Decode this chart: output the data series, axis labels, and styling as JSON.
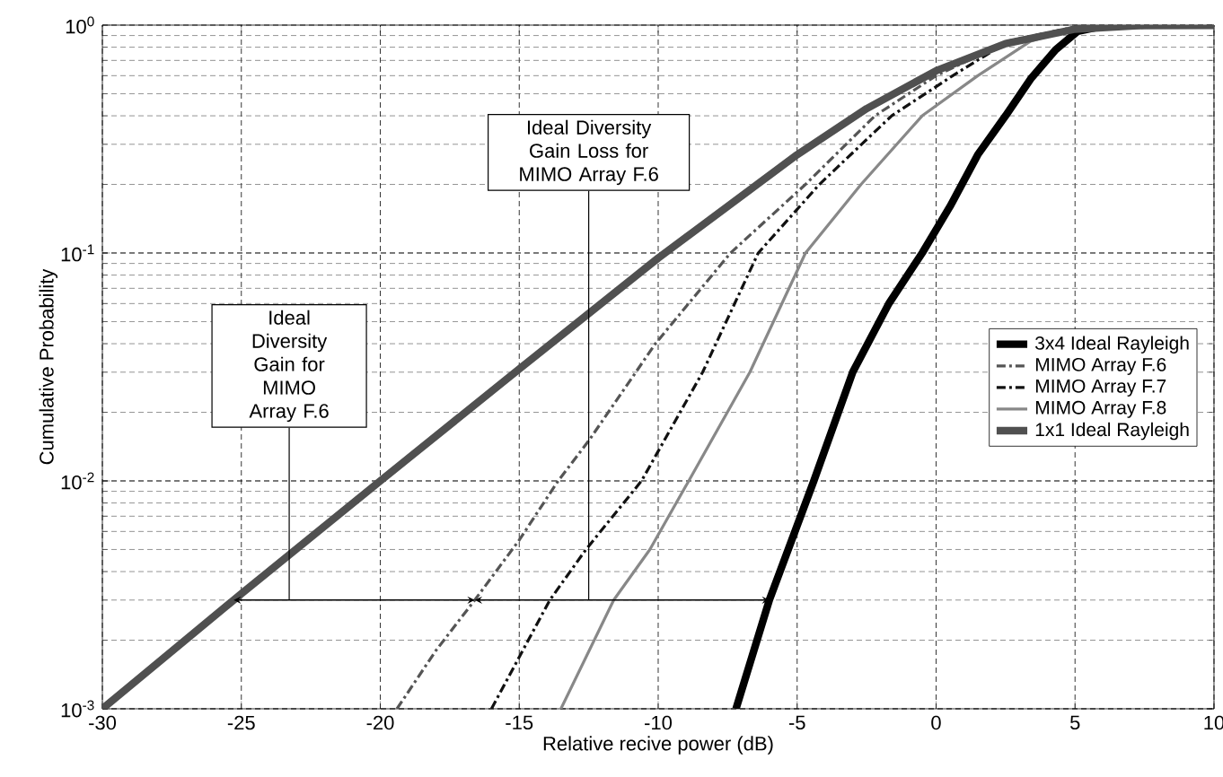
{
  "chart_data": {
    "type": "line",
    "xlabel": "Relative recive power (dB)",
    "ylabel": "Cumulative Probability",
    "xlim": [
      -30,
      10
    ],
    "xticks": [
      -30,
      -25,
      -20,
      -15,
      -10,
      -5,
      0,
      5,
      10
    ],
    "ylim": [
      0.001,
      1
    ],
    "yticks": [
      {
        "value": 0.001,
        "label": "10$^{-3}$"
      },
      {
        "value": 0.01,
        "label": "10$^{-2}$"
      },
      {
        "value": 0.1,
        "label": "10$^{-1}$"
      },
      {
        "value": 1,
        "label": "10$^{0}$"
      }
    ],
    "log": "y",
    "grid": true,
    "legend": "right",
    "marker": "none",
    "series": [
      {
        "name": "3x4 Ideal Rayleigh",
        "color": "#000000",
        "line_style": "solid",
        "x": [
          -7.2,
          -6,
          -4.4,
          -3,
          -1.7,
          -0.5,
          0.5,
          1.5,
          2.5,
          3.4,
          4.3,
          5.1,
          6,
          7,
          10
        ],
        "values": [
          0.001,
          0.003,
          0.01,
          0.03,
          0.06,
          0.1,
          0.16,
          0.27,
          0.4,
          0.58,
          0.78,
          0.94,
          0.99,
          1,
          1
        ]
      },
      {
        "name": "MIMO Array F.6",
        "color": "#555555",
        "line_style": "dashdot",
        "x": [
          -19.4,
          -18,
          -16.6,
          -15,
          -13.6,
          -12.5,
          -10.1,
          -7.4,
          -4.7,
          -2.2,
          0,
          2.6,
          5,
          7,
          10
        ],
        "values": [
          0.001,
          0.0018,
          0.003,
          0.0055,
          0.01,
          0.015,
          0.04,
          0.1,
          0.2,
          0.4,
          0.6,
          0.85,
          0.98,
          1,
          1
        ]
      },
      {
        "name": "MIMO Array F.7",
        "color": "#111111",
        "line_style": "dashdot",
        "x": [
          -16,
          -13.9,
          -12.6,
          -10.6,
          -8.4,
          -6.4,
          -4.2,
          -1.6,
          0.6,
          2.6,
          5,
          7,
          10
        ],
        "values": [
          0.001,
          0.003,
          0.005,
          0.01,
          0.03,
          0.1,
          0.2,
          0.4,
          0.6,
          0.85,
          0.98,
          1,
          1
        ]
      },
      {
        "name": "MIMO Array F.8",
        "color": "#888888",
        "line_style": "solid",
        "x": [
          -13.5,
          -11.6,
          -10.3,
          -8.9,
          -6.7,
          -4.7,
          -2.7,
          -0.5,
          1.5,
          3.4,
          5,
          7,
          10
        ],
        "values": [
          0.001,
          0.003,
          0.005,
          0.01,
          0.03,
          0.1,
          0.2,
          0.4,
          0.6,
          0.85,
          0.97,
          1,
          1
        ]
      },
      {
        "name": "1x1 Ideal Rayleigh",
        "color": "#505050",
        "line_style": "solid",
        "x": [
          -30,
          -25,
          -20,
          -15,
          -10,
          -5,
          -2.5,
          0,
          2.5,
          5,
          7.5,
          10
        ],
        "values": [
          0.001,
          0.0032,
          0.01,
          0.031,
          0.095,
          0.27,
          0.43,
          0.63,
          0.83,
          0.96,
          0.998,
          1
        ]
      }
    ],
    "annotations": [
      "Ideal Diversity Gain for MIMO Array F.6",
      "Ideal Diversity Gain Loss for MIMO Array F.6"
    ]
  }
}
